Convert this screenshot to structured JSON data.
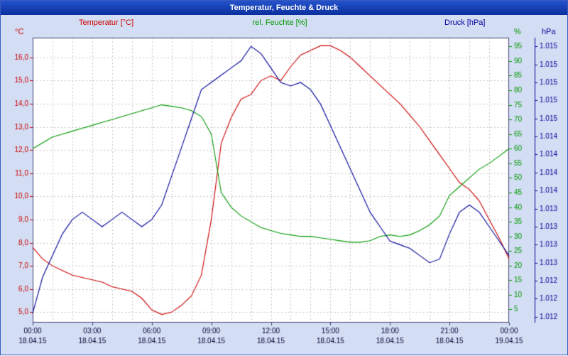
{
  "window": {
    "title": "Temperatur, Feuchte & Druck"
  },
  "legend": [
    {
      "label": "Temperatur [°C]",
      "color": "#cc0000"
    },
    {
      "label": "rel. Feuchte [%]",
      "color": "#009900"
    },
    {
      "label": "Druck [hPa]",
      "color": "#000099"
    }
  ],
  "chart_data": {
    "type": "line",
    "title": "Temperatur, Feuchte & Druck",
    "grid": {
      "on": true,
      "style": "dashed",
      "color": "#c4c4c4"
    },
    "plot_background": "#ffffff",
    "frame_color": "#404070",
    "text_color": "#000033",
    "x_hours": [
      0,
      0.5,
      1,
      1.5,
      2,
      2.5,
      3,
      3.5,
      4,
      4.5,
      5,
      5.5,
      6,
      6.5,
      7,
      7.5,
      8,
      8.5,
      9,
      9.5,
      10,
      10.5,
      11,
      11.5,
      12,
      12.5,
      13,
      13.5,
      14,
      14.5,
      15,
      15.5,
      16,
      16.5,
      17,
      17.5,
      18,
      18.5,
      19,
      19.5,
      20,
      20.5,
      21,
      21.5,
      22,
      22.5,
      23,
      23.5,
      24
    ],
    "x_axis": {
      "range": [
        0,
        24
      ],
      "minor_grid_step_hours": 1,
      "major_tick_hours": [
        0,
        3,
        6,
        9,
        12,
        15,
        18,
        21,
        24
      ],
      "time_labels": [
        "00:00",
        "03:00",
        "06:00",
        "09:00",
        "12:00",
        "15:00",
        "18:00",
        "21:00",
        "00:00"
      ],
      "date_labels": [
        "18.04.15",
        "18.04.15",
        "18.04.15",
        "18.04.15",
        "18.04.15",
        "18.04.15",
        "18.04.15",
        "18.04.15",
        "19.04.15"
      ]
    },
    "axes": {
      "temp": {
        "side": "left",
        "unit": "°C",
        "color": "#cc0000",
        "range": [
          4.55,
          16.85
        ],
        "tick_values": [
          16,
          15,
          14,
          13,
          12,
          11,
          10,
          9,
          8,
          7,
          6,
          5
        ],
        "tick_labels": [
          "16,0",
          "15,0",
          "14,0",
          "13,0",
          "12,0",
          "11,0",
          "10,0",
          "9,0",
          "8,0",
          "7,0",
          "6,0",
          "5,0"
        ]
      },
      "humidity": {
        "side": "right",
        "unit": "%",
        "color": "#009900",
        "range": [
          0.5,
          98
        ],
        "tick_values": [
          95,
          90,
          85,
          80,
          75,
          70,
          65,
          60,
          55,
          50,
          45,
          40,
          35,
          30,
          25,
          20,
          15,
          10,
          5
        ],
        "tick_labels": [
          "95",
          "90",
          "85",
          "80",
          "75",
          "70",
          "65",
          "60",
          "55",
          "50",
          "45",
          "40",
          "35",
          "30",
          "25",
          "20",
          "15",
          "10",
          "5"
        ]
      },
      "pressure": {
        "side": "far-right",
        "unit": "hPa",
        "color": "#000099",
        "range": [
          1011.67,
          1015.62
        ],
        "tick_values": [
          1015.5,
          1015.25,
          1015.0,
          1014.75,
          1014.5,
          1014.25,
          1014.0,
          1013.75,
          1013.5,
          1013.25,
          1013.0,
          1012.75,
          1012.5,
          1012.25,
          1012.0,
          1011.75
        ],
        "tick_labels": [
          "1.015",
          "1.015",
          "1.015",
          "1.015",
          "1.015",
          "1.014",
          "1.014",
          "1.014",
          "1.014",
          "1.013",
          "1.013",
          "1.013",
          "1.013",
          "1.012",
          "1.012",
          "1.012"
        ]
      }
    },
    "series": [
      {
        "name": "Temperatur",
        "unit": "°C",
        "axis": "temp",
        "color": "#cc0000",
        "values": [
          7.8,
          7.3,
          7.0,
          6.8,
          6.6,
          6.5,
          6.4,
          6.3,
          6.1,
          6.0,
          5.9,
          5.6,
          5.1,
          4.9,
          5.0,
          5.3,
          5.7,
          6.6,
          9.0,
          12.3,
          13.4,
          14.2,
          14.4,
          15.0,
          15.2,
          15.0,
          15.6,
          16.1,
          16.3,
          16.5,
          16.5,
          16.3,
          16.0,
          15.6,
          15.2,
          14.8,
          14.4,
          14.0,
          13.5,
          13.0,
          12.4,
          11.8,
          11.2,
          10.6,
          10.3,
          9.8,
          9.0,
          8.2,
          7.3
        ]
      },
      {
        "name": "rel. Feuchte",
        "unit": "%",
        "axis": "humidity",
        "color": "#009900",
        "values": [
          60,
          62,
          64,
          65,
          66,
          67,
          68,
          69,
          70,
          71,
          72,
          73,
          74,
          75,
          74.5,
          74,
          73,
          71,
          65,
          45,
          40,
          37,
          35,
          33,
          32,
          31,
          30.5,
          30,
          30,
          29.5,
          29,
          28.5,
          28,
          28,
          28.5,
          30,
          30.5,
          30,
          30.5,
          32,
          34,
          37,
          44,
          47,
          50,
          53,
          55,
          57.5,
          60
        ]
      },
      {
        "name": "Druck",
        "unit": "hPa",
        "axis": "pressure",
        "color": "#000099",
        "values": [
          1011.8,
          1012.3,
          1012.6,
          1012.9,
          1013.1,
          1013.2,
          1013.1,
          1013.0,
          1013.1,
          1013.2,
          1013.1,
          1013.0,
          1013.1,
          1013.3,
          1013.7,
          1014.1,
          1014.5,
          1014.9,
          1015.0,
          1015.1,
          1015.2,
          1015.3,
          1015.5,
          1015.4,
          1015.2,
          1015.0,
          1014.95,
          1015.0,
          1014.9,
          1014.7,
          1014.4,
          1014.1,
          1013.8,
          1013.5,
          1013.2,
          1013.0,
          1012.8,
          1012.75,
          1012.7,
          1012.6,
          1012.5,
          1012.55,
          1012.9,
          1013.2,
          1013.3,
          1013.2,
          1013.0,
          1012.8,
          1012.6
        ]
      }
    ]
  }
}
